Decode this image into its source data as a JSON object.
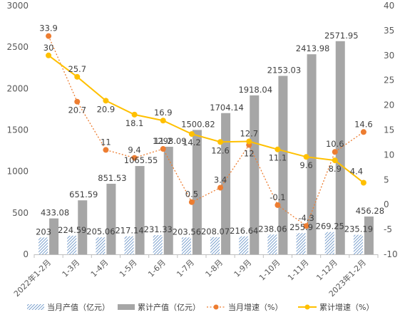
{
  "chart_data": {
    "type": "bar",
    "categories": [
      "2022年1-2月",
      "1-3月",
      "1-4月",
      "1-5月",
      "1-6月",
      "1-7月",
      "1-8月",
      "1-9月",
      "1-10月",
      "1-11月",
      "1-12月",
      "2023年1-2月"
    ],
    "series": [
      {
        "name": "当月产值（亿元）",
        "type": "bar",
        "axis": "left",
        "pattern": "diagonal-hatch",
        "color": "#4f81bd",
        "values": [
          203,
          224.59,
          205.06,
          217.14,
          231.33,
          203.56,
          208.07,
          216.64,
          238.06,
          255.9,
          269.25,
          235.19
        ]
      },
      {
        "name": "累计产值（亿元）",
        "type": "bar",
        "axis": "left",
        "color": "#a6a6a6",
        "values": [
          433.08,
          651.59,
          851.53,
          1065.55,
          1298.09,
          1500.82,
          1704.14,
          1918.04,
          2153.03,
          2413.98,
          2571.95,
          456.28
        ]
      },
      {
        "name": "当月增速（%）",
        "type": "line",
        "axis": "right",
        "dashed": true,
        "color": "#ed7d31",
        "values": [
          33.9,
          20.7,
          11,
          9.4,
          11.2,
          0.5,
          3.4,
          12,
          -0.1,
          -4.3,
          10.6,
          14.6
        ]
      },
      {
        "name": "累计增速（%）",
        "type": "line",
        "axis": "right",
        "dashed": false,
        "color": "#ffc000",
        "values": [
          30,
          25.7,
          20.9,
          18.1,
          16.9,
          14.2,
          12.6,
          12.7,
          11.1,
          9.6,
          8.9,
          4.4
        ]
      }
    ],
    "left_axis": {
      "min": 0,
      "max": 3000,
      "step": 500
    },
    "right_axis": {
      "min": -10,
      "max": 40,
      "step": 5
    },
    "grid": false,
    "legend_position": "bottom",
    "value_label_texts": {
      "monthly": [
        "203",
        "224.59",
        "205.06",
        "217.14",
        "231.33",
        "203.56",
        "208.07",
        "216.64",
        "238.06",
        "255.9",
        "269.25",
        "235.19"
      ],
      "cumulative": [
        "433.08",
        "651.59",
        "851.53",
        "1065.55",
        "1298.09",
        "1500.82",
        "1704.14",
        "1918.04",
        "2153.03",
        "2413.98",
        "2571.95",
        "456.28"
      ],
      "monthly_growth": [
        "33.9",
        "20.7",
        "11",
        "9.4",
        "11.2",
        "0.5",
        "3.4",
        "12",
        "-0.1",
        "-4.3",
        "10.6",
        "14.6"
      ],
      "cumulative_growth": [
        "30",
        "25.7",
        "20.9",
        "18.1",
        "16.9",
        "14.2",
        "12.6",
        "12.7",
        "11.1",
        "9.6",
        "8.9",
        "4.4"
      ]
    }
  }
}
